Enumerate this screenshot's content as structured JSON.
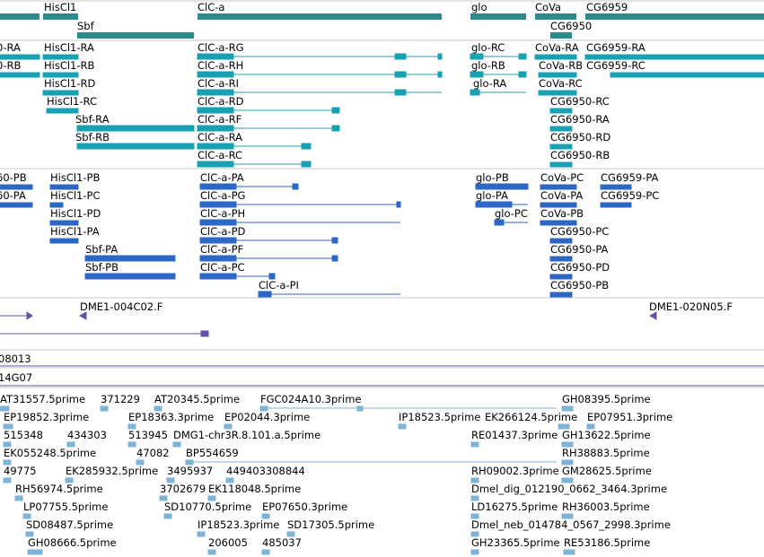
{
  "colors": {
    "gene": "#2e8b8b",
    "transcript": "#1aa0b0",
    "protein": "#2d67c6",
    "clone": "#6a4fa6",
    "est": "#7fb3d5",
    "separator": "#b0b0b0",
    "background": "#ffffff"
  },
  "genes": [
    {
      "label": "HisCl1"
    },
    {
      "label": "Sbf"
    },
    {
      "label": "ClC-a"
    },
    {
      "label": "glo"
    },
    {
      "label": "CoVa"
    },
    {
      "label": "CG6959"
    },
    {
      "label": "CG6950"
    }
  ],
  "transcripts": [
    {
      "label": "0-RA"
    },
    {
      "label": "HisCl1-RA"
    },
    {
      "label": "ClC-a-RG"
    },
    {
      "label": "glo-RC"
    },
    {
      "label": "CoVa-RA"
    },
    {
      "label": "CG6959-RA"
    },
    {
      "label": "0-RB"
    },
    {
      "label": "HisCl1-RB"
    },
    {
      "label": "ClC-a-RH"
    },
    {
      "label": "glo-RB"
    },
    {
      "label": "CoVa-RB"
    },
    {
      "label": "CG6959-RC"
    },
    {
      "label": "HisCl1-RD"
    },
    {
      "label": "ClC-a-RI"
    },
    {
      "label": "glo-RA"
    },
    {
      "label": "CoVa-RC"
    },
    {
      "label": "HisCl1-RC"
    },
    {
      "label": "ClC-a-RD"
    },
    {
      "label": "CG6950-RC"
    },
    {
      "label": "Sbf-RA"
    },
    {
      "label": "ClC-a-RF"
    },
    {
      "label": "CG6950-RA"
    },
    {
      "label": "Sbf-RB"
    },
    {
      "label": "ClC-a-RA"
    },
    {
      "label": "CG6950-RD"
    },
    {
      "label": "ClC-a-RC"
    },
    {
      "label": "CG6950-RB"
    }
  ],
  "proteins": [
    {
      "label": "60-PB"
    },
    {
      "label": "HisCl1-PB"
    },
    {
      "label": "ClC-a-PA"
    },
    {
      "label": "glo-PB"
    },
    {
      "label": "CoVa-PC"
    },
    {
      "label": "CG6959-PA"
    },
    {
      "label": "60-PA"
    },
    {
      "label": "HisCl1-PC"
    },
    {
      "label": "ClC-a-PG"
    },
    {
      "label": "glo-PA"
    },
    {
      "label": "CoVa-PA"
    },
    {
      "label": "CG6959-PC"
    },
    {
      "label": "HisCl1-PD"
    },
    {
      "label": "ClC-a-PH"
    },
    {
      "label": "glo-PC"
    },
    {
      "label": "CoVa-PB"
    },
    {
      "label": "HisCl1-PA"
    },
    {
      "label": "ClC-a-PD"
    },
    {
      "label": "CG6950-PC"
    },
    {
      "label": "Sbf-PA"
    },
    {
      "label": "ClC-a-PF"
    },
    {
      "label": "CG6950-PA"
    },
    {
      "label": "Sbf-PB"
    },
    {
      "label": "ClC-a-PC"
    },
    {
      "label": "CG6950-PD"
    },
    {
      "label": "ClC-a-PI"
    },
    {
      "label": "CG6950-PB"
    }
  ],
  "clones": [
    {
      "label": "DME1-004C02.F"
    },
    {
      "label": "DME1-020N05.F"
    },
    {
      "label": "08013"
    },
    {
      "label": "14G07"
    }
  ],
  "ests": [
    {
      "label": "AT31557.5prime"
    },
    {
      "label": "371229"
    },
    {
      "label": "AT20345.5prime"
    },
    {
      "label": "FGC024A10.3prime"
    },
    {
      "label": "GH08395.5prime"
    },
    {
      "label": "EP19852.3prime"
    },
    {
      "label": "EP18363.3prime"
    },
    {
      "label": "EP02044.3prime"
    },
    {
      "label": "IP18523.5prime"
    },
    {
      "label": "EK266124.5prime"
    },
    {
      "label": "EP07951.3prime"
    },
    {
      "label": "515348"
    },
    {
      "label": "434303"
    },
    {
      "label": "513945"
    },
    {
      "label": "DMG1-chr3R.8.101.a.5prime"
    },
    {
      "label": "RE01437.3prime"
    },
    {
      "label": "GH13622.5prime"
    },
    {
      "label": "EK055248.5prime"
    },
    {
      "label": "47082"
    },
    {
      "label": "BP554659"
    },
    {
      "label": "RH38883.5prime"
    },
    {
      "label": "49775"
    },
    {
      "label": "EK285932.5prime"
    },
    {
      "label": "3495937"
    },
    {
      "label": "449403308844"
    },
    {
      "label": "RH09002.3prime"
    },
    {
      "label": "GM28625.5prime"
    },
    {
      "label": "RH56974.5prime"
    },
    {
      "label": "3702679"
    },
    {
      "label": "EK118048.5prime"
    },
    {
      "label": "Dmel_dig_012190_0662_3464.3prime"
    },
    {
      "label": "LP07755.5prime"
    },
    {
      "label": "SD10770.5prime"
    },
    {
      "label": "EP07650.3prime"
    },
    {
      "label": "LD16275.5prime"
    },
    {
      "label": "RH36003.5prime"
    },
    {
      "label": "SD08487.5prime"
    },
    {
      "label": "IP18523.3prime"
    },
    {
      "label": "SD17305.5prime"
    },
    {
      "label": "Dmel_neb_014784_0567_2998.3prime"
    },
    {
      "label": "GH08666.5prime"
    },
    {
      "label": "206005"
    },
    {
      "label": "485037"
    },
    {
      "label": "GH23365.5prime"
    },
    {
      "label": "RE53186.5prime"
    }
  ]
}
